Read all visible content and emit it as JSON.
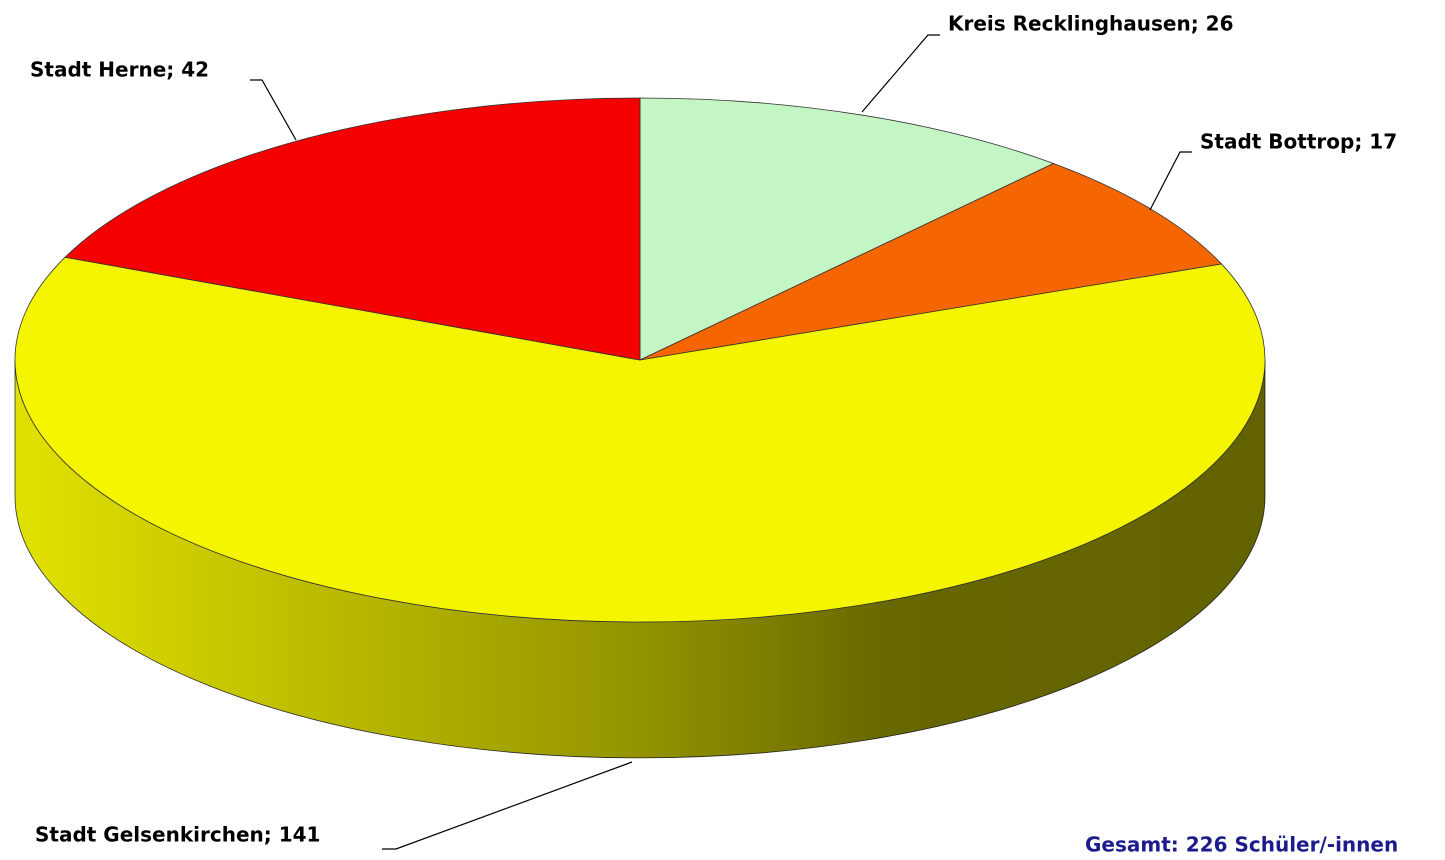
{
  "chart_data": {
    "type": "pie3d",
    "values": [
      26,
      17,
      141,
      42
    ],
    "value_labels": [
      "Kreis Recklinghausen; 26",
      "Stadt Bottrop; 17",
      "Stadt Gelsenkirchen; 141",
      "Stadt Herne; 42"
    ],
    "colors": [
      "#c4f5c4",
      "#f56600",
      "#f5f500",
      "#f50000"
    ],
    "annotation": "Gesamt: 226 Schüler/-innen"
  }
}
